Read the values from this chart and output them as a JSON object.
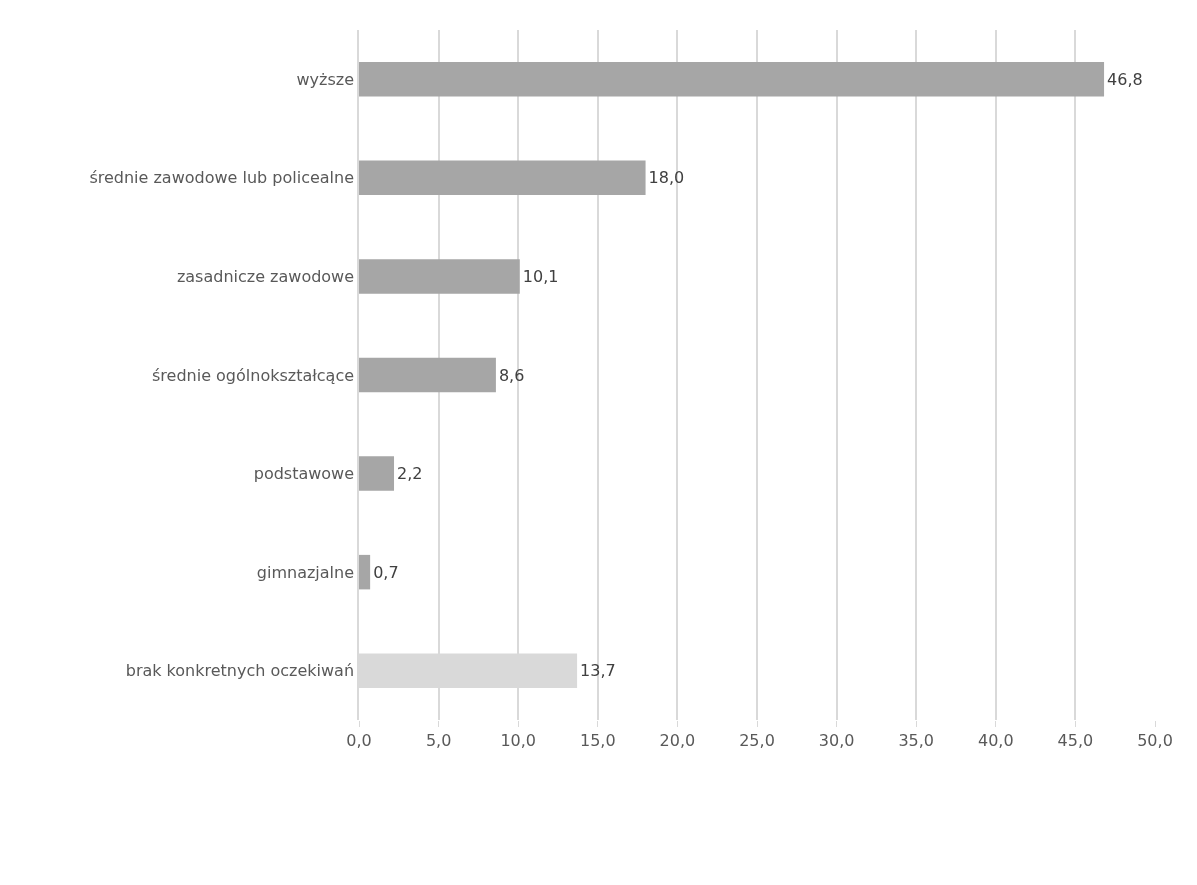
{
  "chart_data": {
    "type": "bar",
    "orientation": "horizontal",
    "categories": [
      "wyższe",
      "średnie zawodowe lub policealne",
      "zasadnicze zawodowe",
      "średnie ogólnokształcące",
      "podstawowe",
      "gimnazjalne",
      "brak konkretnych oczekiwań"
    ],
    "values": [
      46.8,
      18.0,
      10.1,
      8.6,
      2.2,
      0.7,
      13.7
    ],
    "value_labels": [
      "46,8",
      "18,0",
      "10,1",
      "8,6",
      "2,2",
      "0,7",
      "13,7"
    ],
    "colors": [
      "#a6a6a6",
      "#a6a6a6",
      "#a6a6a6",
      "#a6a6a6",
      "#a6a6a6",
      "#a6a6a6",
      "#d9d9d9"
    ],
    "xlim": [
      0,
      50
    ],
    "xticks": [
      {
        "value": 0,
        "label": "0,0"
      },
      {
        "value": 5,
        "label": "5,0"
      },
      {
        "value": 10,
        "label": "10,0"
      },
      {
        "value": 15,
        "label": "15,0"
      },
      {
        "value": 20,
        "label": "20,0"
      },
      {
        "value": 25,
        "label": "25,0"
      },
      {
        "value": 30,
        "label": "30,0"
      },
      {
        "value": 35,
        "label": "35,0"
      },
      {
        "value": 40,
        "label": "40,0"
      },
      {
        "value": 45,
        "label": "45,0"
      },
      {
        "value": 50,
        "label": "50,0"
      }
    ],
    "grid": "x"
  }
}
